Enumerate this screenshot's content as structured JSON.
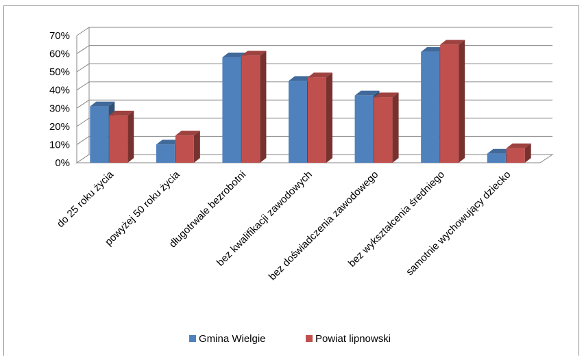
{
  "chart_data": {
    "type": "bar",
    "categories": [
      "do 25 roku życia",
      "powyżej 50 roku życia",
      "długotrwale bezrobotni",
      "bez kwalifikacji zawodowych",
      "bez doświadczenia zawodowego",
      "bez wykształcenia średniego",
      "samotnie wychowujący dziecko"
    ],
    "series": [
      {
        "name": "Gmina Wielgie",
        "color": "#4f81bd",
        "values": [
          31,
          10,
          58,
          45,
          37,
          61,
          5
        ]
      },
      {
        "name": "Powiat lipnowski",
        "color": "#c0504d",
        "values": [
          26,
          15,
          59,
          47,
          36,
          65,
          8
        ]
      }
    ],
    "ylim": [
      0,
      70
    ],
    "yticks": [
      "0%",
      "10%",
      "20%",
      "30%",
      "40%",
      "50%",
      "60%",
      "70%"
    ],
    "grid": true,
    "legend_position": "bottom"
  }
}
